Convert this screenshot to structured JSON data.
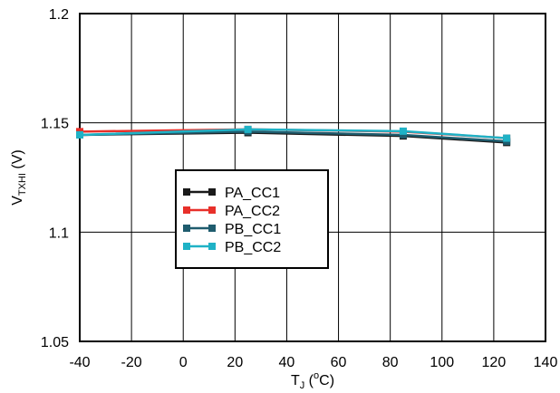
{
  "chart_data": {
    "type": "line",
    "title": "",
    "xlabel": {
      "main": "T",
      "sub": "J",
      "rest_prefix": " (",
      "sup": "o",
      "rest_suffix": "C)"
    },
    "ylabel": {
      "main": "V",
      "sub": "TXHI",
      "rest": " (V)"
    },
    "xlim": [
      -40,
      140
    ],
    "ylim": [
      1.05,
      1.2
    ],
    "x_ticks": [
      -40,
      -20,
      0,
      20,
      40,
      60,
      80,
      100,
      120,
      140
    ],
    "x_tick_labels": [
      "-40",
      "-20",
      "0",
      "20",
      "40",
      "60",
      "80",
      "100",
      "120",
      "140"
    ],
    "y_ticks": [
      1.05,
      1.1,
      1.15,
      1.2
    ],
    "y_tick_labels": [
      "1.05",
      "1.1",
      "1.15",
      "1.2"
    ],
    "grid": true,
    "legend_position": "center-left",
    "x": [
      -40,
      25,
      85,
      125
    ],
    "series": [
      {
        "name": "PA_CC1",
        "color": "#1a1a1a",
        "values": [
          1.1445,
          1.1455,
          1.144,
          1.141
        ]
      },
      {
        "name": "PA_CC2",
        "color": "#e8302a",
        "values": [
          1.146,
          1.147,
          1.146,
          1.143
        ]
      },
      {
        "name": "PB_CC1",
        "color": "#1f5c6e",
        "values": [
          1.1445,
          1.146,
          1.1445,
          1.1415
        ]
      },
      {
        "name": "PB_CC2",
        "color": "#1fb2c6",
        "values": [
          1.1445,
          1.147,
          1.1462,
          1.143
        ]
      }
    ]
  }
}
